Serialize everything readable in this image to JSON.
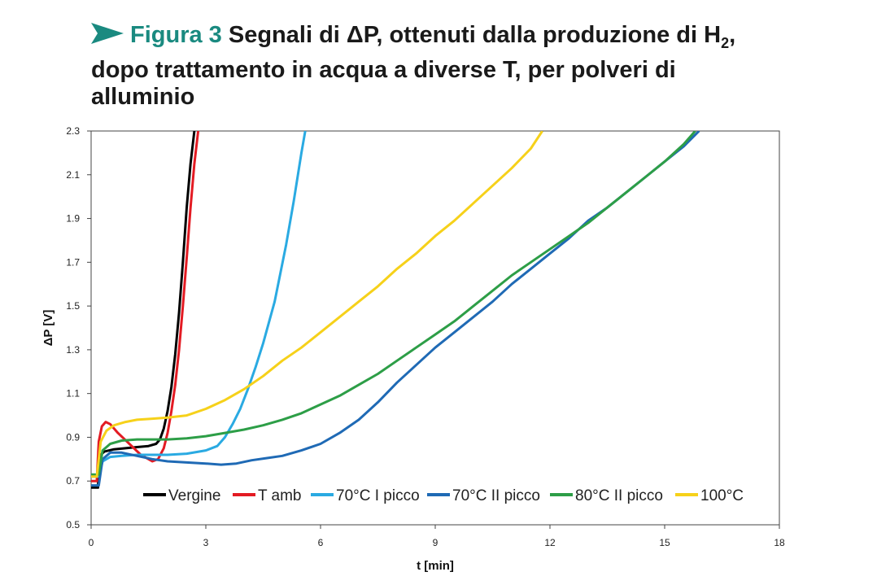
{
  "figure": {
    "label": "Figura 3",
    "title_part1": "Segnali di ΔP, ottenuti dalla produzione di H",
    "title_sub": "2",
    "title_part2": ",",
    "title_line2": "dopo trattamento in acqua a diverse T, per polveri di",
    "title_line3": "alluminio",
    "accent_color": "#1a8a80",
    "icon": "arrow-right-icon"
  },
  "chart_data": {
    "type": "line",
    "xlabel": "t [min]",
    "ylabel": "ΔP [V]",
    "xlim": [
      0,
      18
    ],
    "ylim": [
      0.5,
      2.3
    ],
    "xticks": [
      0,
      3,
      6,
      9,
      12,
      15,
      18
    ],
    "yticks": [
      0.5,
      0.7,
      0.9,
      1.1,
      1.3,
      1.5,
      1.7,
      1.9,
      2.1,
      2.3
    ],
    "ytick_labels": [
      "0.5",
      "0.7",
      "0.9",
      "1.1",
      "1.3",
      "1.5",
      "1.7",
      "1.9",
      "2.1",
      "2.3"
    ],
    "grid": false,
    "legend_position": "bottom",
    "series": [
      {
        "name": "Vergine",
        "color": "#000000",
        "x": [
          0,
          0.18,
          0.2,
          0.25,
          0.35,
          0.6,
          0.9,
          1.2,
          1.5,
          1.7,
          1.8,
          1.9,
          2.0,
          2.1,
          2.2,
          2.3,
          2.4,
          2.5,
          2.6,
          2.7
        ],
        "y": [
          0.67,
          0.67,
          0.78,
          0.82,
          0.835,
          0.845,
          0.85,
          0.855,
          0.86,
          0.87,
          0.89,
          0.94,
          1.02,
          1.13,
          1.28,
          1.47,
          1.7,
          1.95,
          2.15,
          2.3
        ]
      },
      {
        "name": "T amb",
        "color": "#e31b23",
        "x": [
          0,
          0.15,
          0.2,
          0.28,
          0.38,
          0.5,
          0.7,
          1.0,
          1.3,
          1.6,
          1.75,
          1.9,
          2.0,
          2.1,
          2.2,
          2.3,
          2.4,
          2.5,
          2.6,
          2.7,
          2.8
        ],
        "y": [
          0.7,
          0.7,
          0.88,
          0.95,
          0.97,
          0.96,
          0.92,
          0.87,
          0.82,
          0.79,
          0.8,
          0.85,
          0.92,
          1.02,
          1.14,
          1.3,
          1.5,
          1.72,
          1.95,
          2.15,
          2.3
        ]
      },
      {
        "name": "70°C I picco",
        "color": "#2aaae2",
        "x": [
          0,
          0.2,
          0.3,
          0.5,
          0.8,
          1.2,
          1.6,
          2.0,
          2.5,
          3.0,
          3.3,
          3.5,
          3.7,
          3.9,
          4.1,
          4.3,
          4.5,
          4.8,
          5.1,
          5.3,
          5.5,
          5.6
        ],
        "y": [
          0.72,
          0.72,
          0.79,
          0.81,
          0.815,
          0.82,
          0.82,
          0.82,
          0.825,
          0.84,
          0.86,
          0.9,
          0.96,
          1.03,
          1.12,
          1.22,
          1.33,
          1.52,
          1.78,
          1.98,
          2.2,
          2.3
        ]
      },
      {
        "name": "70°C II picco",
        "color": "#1f6ab5",
        "x": [
          0,
          0.2,
          0.3,
          0.5,
          0.8,
          1.2,
          1.6,
          2.0,
          2.5,
          3.0,
          3.4,
          3.8,
          4.2,
          4.6,
          5.0,
          5.5,
          6.0,
          6.5,
          7.0,
          7.5,
          8.0,
          8.5,
          9.0,
          9.5,
          10.0,
          10.5,
          11.0,
          11.5,
          12.0,
          12.5,
          13.0,
          13.5,
          14.0,
          14.5,
          15.0,
          15.5,
          15.9
        ],
        "y": [
          0.68,
          0.68,
          0.8,
          0.83,
          0.83,
          0.815,
          0.8,
          0.79,
          0.785,
          0.78,
          0.775,
          0.78,
          0.795,
          0.805,
          0.815,
          0.84,
          0.87,
          0.92,
          0.98,
          1.06,
          1.15,
          1.23,
          1.31,
          1.38,
          1.45,
          1.52,
          1.6,
          1.67,
          1.74,
          1.81,
          1.89,
          1.95,
          2.02,
          2.09,
          2.16,
          2.23,
          2.3
        ]
      },
      {
        "name": "80°C II picco",
        "color": "#2d9e47",
        "x": [
          0,
          0.2,
          0.3,
          0.5,
          0.8,
          1.2,
          1.6,
          2.0,
          2.5,
          3.0,
          3.5,
          4.0,
          4.5,
          5.0,
          5.5,
          6.0,
          6.5,
          7.0,
          7.5,
          8.0,
          8.5,
          9.0,
          9.5,
          10.0,
          10.5,
          11.0,
          11.5,
          12.0,
          12.5,
          13.0,
          13.5,
          14.0,
          14.5,
          15.0,
          15.5,
          15.8
        ],
        "y": [
          0.73,
          0.73,
          0.84,
          0.87,
          0.885,
          0.89,
          0.89,
          0.89,
          0.895,
          0.905,
          0.92,
          0.935,
          0.955,
          0.98,
          1.01,
          1.05,
          1.09,
          1.14,
          1.19,
          1.25,
          1.31,
          1.37,
          1.43,
          1.5,
          1.57,
          1.64,
          1.7,
          1.76,
          1.82,
          1.88,
          1.95,
          2.02,
          2.09,
          2.16,
          2.24,
          2.3
        ]
      },
      {
        "name": "100°C",
        "color": "#f6d11a",
        "x": [
          0,
          0.15,
          0.25,
          0.4,
          0.6,
          0.9,
          1.2,
          1.6,
          2.0,
          2.5,
          3.0,
          3.5,
          4.0,
          4.5,
          5.0,
          5.5,
          6.0,
          6.5,
          7.0,
          7.5,
          8.0,
          8.5,
          9.0,
          9.5,
          10.0,
          10.5,
          11.0,
          11.5,
          11.8
        ],
        "y": [
          0.72,
          0.72,
          0.88,
          0.93,
          0.955,
          0.97,
          0.98,
          0.985,
          0.99,
          1.0,
          1.03,
          1.07,
          1.12,
          1.18,
          1.25,
          1.31,
          1.38,
          1.45,
          1.52,
          1.59,
          1.67,
          1.74,
          1.82,
          1.89,
          1.97,
          2.05,
          2.13,
          2.22,
          2.3
        ]
      }
    ]
  }
}
